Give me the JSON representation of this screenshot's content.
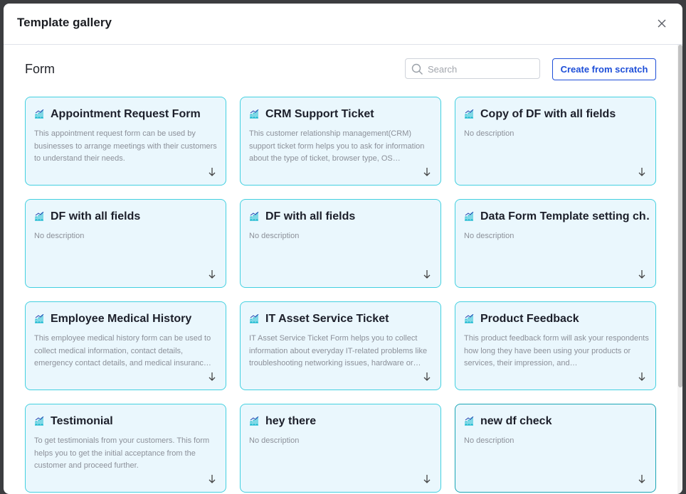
{
  "header": {
    "title": "Template gallery"
  },
  "section": {
    "title": "Form"
  },
  "search": {
    "placeholder": "Search"
  },
  "create_button": {
    "label": "Create from scratch"
  },
  "cards": [
    {
      "title": "Appointment Request Form",
      "description": "This appointment request form can be used by businesses to arrange meetings with their customers to understand their needs."
    },
    {
      "title": "CRM Support Ticket",
      "description": "This customer relationship management(CRM) support ticket form helps you to ask for information about the type of ticket, browser type, OS…"
    },
    {
      "title": "Copy of DF with all fields",
      "description": "No description"
    },
    {
      "title": "DF with all fields",
      "description": "No description"
    },
    {
      "title": "DF with all fields",
      "description": "No description"
    },
    {
      "title": "Data Form Template setting ch…",
      "description": "No description"
    },
    {
      "title": "Employee Medical History",
      "description": "This employee medical history form can be used to collect medical information, contact details, emergency contact details, and medical insuranc…"
    },
    {
      "title": "IT Asset Service Ticket",
      "description": "IT Asset Service Ticket Form helps you to collect information about everyday IT-related problems like troubleshooting networking issues, hardware or…"
    },
    {
      "title": "Product Feedback",
      "description": "This product feedback form will ask your respondents how long they have been using your products or services, their impression, and…"
    },
    {
      "title": "Testimonial",
      "description": "To get testimonials from your customers. This form helps you to get the initial acceptance from the customer and proceed further."
    },
    {
      "title": "hey there",
      "description": "No description"
    },
    {
      "title": "new df check",
      "description": "No description"
    }
  ]
}
